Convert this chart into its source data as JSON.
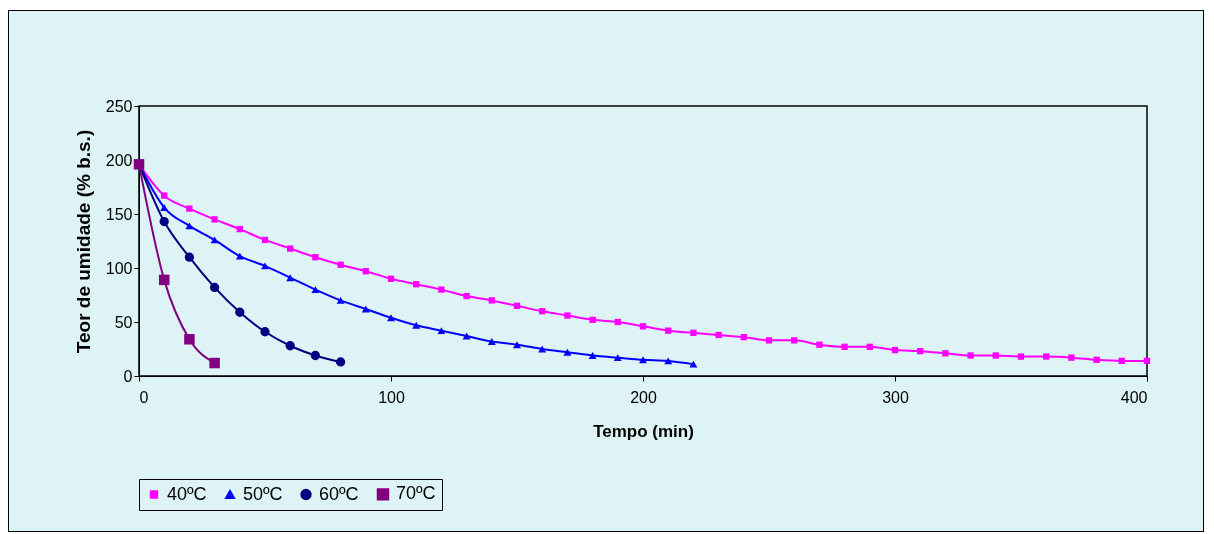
{
  "chart_data": {
    "type": "line",
    "xlabel": "Tempo (min)",
    "ylabel": "Teor de umidade (% b.s.)",
    "xlim": [
      0,
      400
    ],
    "xticks": [
      0,
      100,
      200,
      300,
      400
    ],
    "ylim": [
      0,
      250
    ],
    "yticks": [
      0,
      50,
      100,
      150,
      200,
      250
    ],
    "grid": false,
    "legend": "bottom",
    "series": [
      {
        "name": "40ºC",
        "color": "#ff00ff",
        "marker": "square",
        "x": [
          0,
          10,
          20,
          30,
          40,
          50,
          60,
          70,
          80,
          90,
          100,
          110,
          120,
          130,
          140,
          150,
          160,
          170,
          180,
          190,
          200,
          210,
          220,
          230,
          240,
          250,
          260,
          270,
          280,
          290,
          300,
          310,
          320,
          330,
          340,
          350,
          360,
          370,
          380,
          390,
          400
        ],
        "values": [
          196,
          167,
          155,
          145,
          136,
          126,
          118,
          110,
          103,
          97,
          90,
          85,
          80,
          74,
          70,
          65,
          60,
          56,
          52,
          50,
          46,
          42,
          40,
          38,
          36,
          33,
          33,
          29,
          27,
          27,
          24,
          23,
          21,
          19,
          19,
          18,
          18,
          17,
          15,
          14,
          14
        ]
      },
      {
        "name": "50ºC",
        "color": "#0000ff",
        "marker": "triangle",
        "x": [
          0,
          10,
          20,
          30,
          40,
          50,
          60,
          70,
          80,
          90,
          100,
          110,
          120,
          130,
          140,
          150,
          160,
          170,
          180,
          190,
          200,
          210,
          220
        ],
        "values": [
          196,
          156,
          139,
          126,
          111,
          102,
          91,
          80,
          70,
          62,
          54,
          47,
          42,
          37,
          32,
          29,
          25,
          22,
          19,
          17,
          15,
          14,
          11
        ]
      },
      {
        "name": "60ºC",
        "color": "#000080",
        "marker": "circle",
        "x": [
          0,
          10,
          20,
          30,
          40,
          50,
          60,
          70,
          80
        ],
        "values": [
          196,
          143,
          110,
          82,
          59,
          41,
          28,
          19,
          13
        ]
      },
      {
        "name": "70ºC",
        "color": "#800080",
        "marker": "square",
        "x": [
          0,
          10,
          20,
          30
        ],
        "values": [
          196,
          89,
          34,
          12
        ]
      }
    ]
  }
}
